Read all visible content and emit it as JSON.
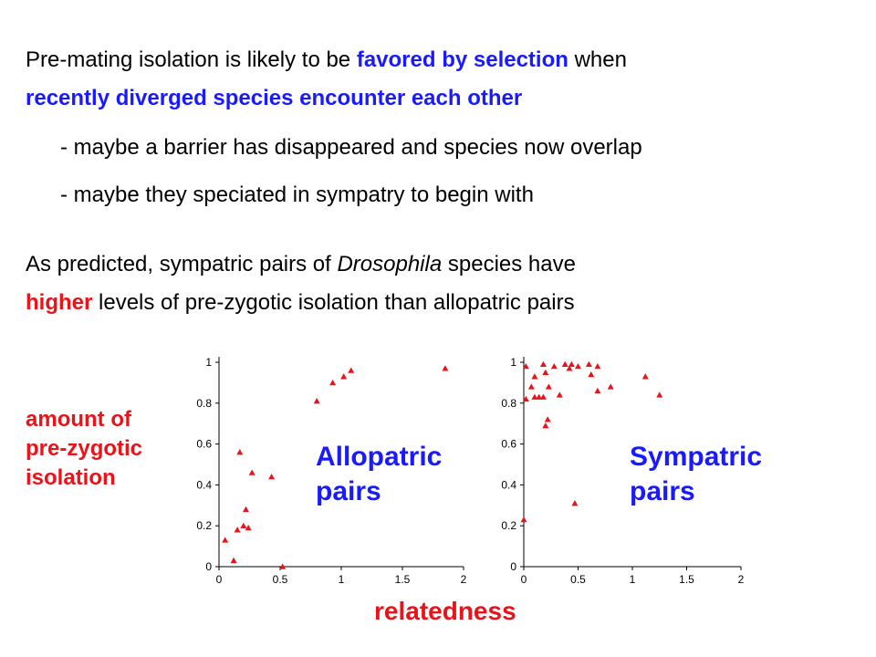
{
  "slide": {
    "line1_a": "Pre-mating isolation is likely to be ",
    "line1_b": "favored by selection",
    "line1_c": " when",
    "line2": "recently diverged species encounter each other",
    "bullet1": "- maybe a barrier has disappeared and species now overlap",
    "bullet2": "- maybe they speciated in sympatry to begin with",
    "p2_a": "As predicted, sympatric pairs of ",
    "p2_b": "Drosophila",
    "p2_c": " species have",
    "p3_a": "higher",
    "p3_b": " levels of pre-zygotic isolation than allopatric pairs",
    "ylabel_lines": [
      "amount of",
      "pre-zygotic",
      "isolation"
    ],
    "xlabel": "relatedness",
    "label_allo": [
      "Allopatric",
      "pairs"
    ],
    "label_sym": [
      "Sympatric",
      "pairs"
    ]
  },
  "chart_data": [
    {
      "type": "scatter",
      "title": "Allopatric pairs",
      "xlabel": "relatedness",
      "ylabel": "amount of pre-zygotic isolation",
      "xlim": [
        0,
        2
      ],
      "ylim": [
        0,
        1
      ],
      "xticks": [
        "0",
        "0.5",
        "1",
        "1.5",
        "2"
      ],
      "yticks": [
        "0",
        "0.2",
        "0.4",
        "0.6",
        "0.8",
        "1"
      ],
      "marker_color": "#e8141a",
      "points": [
        {
          "x": 0.05,
          "y": 0.13
        },
        {
          "x": 0.12,
          "y": 0.03
        },
        {
          "x": 0.15,
          "y": 0.18
        },
        {
          "x": 0.17,
          "y": 0.56
        },
        {
          "x": 0.2,
          "y": 0.2
        },
        {
          "x": 0.22,
          "y": 0.28
        },
        {
          "x": 0.24,
          "y": 0.19
        },
        {
          "x": 0.27,
          "y": 0.46
        },
        {
          "x": 0.43,
          "y": 0.44
        },
        {
          "x": 0.52,
          "y": 0.0
        },
        {
          "x": 0.8,
          "y": 0.81
        },
        {
          "x": 0.93,
          "y": 0.9
        },
        {
          "x": 1.02,
          "y": 0.93
        },
        {
          "x": 1.08,
          "y": 0.96
        },
        {
          "x": 1.85,
          "y": 0.97
        }
      ]
    },
    {
      "type": "scatter",
      "title": "Sympatric pairs",
      "xlabel": "relatedness",
      "ylabel": "amount of pre-zygotic isolation",
      "xlim": [
        0,
        2
      ],
      "ylim": [
        0,
        1
      ],
      "xticks": [
        "0",
        "0.5",
        "1",
        "1.5",
        "2"
      ],
      "yticks": [
        "0",
        "0.2",
        "0.4",
        "0.6",
        "0.8",
        "1"
      ],
      "marker_color": "#e8141a",
      "points": [
        {
          "x": 0.0,
          "y": 0.23
        },
        {
          "x": 0.02,
          "y": 0.82
        },
        {
          "x": 0.02,
          "y": 0.98
        },
        {
          "x": 0.07,
          "y": 0.88
        },
        {
          "x": 0.1,
          "y": 0.93
        },
        {
          "x": 0.1,
          "y": 0.83
        },
        {
          "x": 0.14,
          "y": 0.83
        },
        {
          "x": 0.18,
          "y": 0.83
        },
        {
          "x": 0.18,
          "y": 0.99
        },
        {
          "x": 0.2,
          "y": 0.69
        },
        {
          "x": 0.22,
          "y": 0.72
        },
        {
          "x": 0.2,
          "y": 0.95
        },
        {
          "x": 0.23,
          "y": 0.88
        },
        {
          "x": 0.28,
          "y": 0.98
        },
        {
          "x": 0.33,
          "y": 0.84
        },
        {
          "x": 0.38,
          "y": 0.99
        },
        {
          "x": 0.42,
          "y": 0.97
        },
        {
          "x": 0.44,
          "y": 0.99
        },
        {
          "x": 0.47,
          "y": 0.31
        },
        {
          "x": 0.5,
          "y": 0.98
        },
        {
          "x": 0.6,
          "y": 0.99
        },
        {
          "x": 0.62,
          "y": 0.94
        },
        {
          "x": 0.68,
          "y": 0.86
        },
        {
          "x": 0.68,
          "y": 0.98
        },
        {
          "x": 0.8,
          "y": 0.88
        },
        {
          "x": 1.12,
          "y": 0.93
        },
        {
          "x": 1.25,
          "y": 0.84
        }
      ]
    }
  ]
}
